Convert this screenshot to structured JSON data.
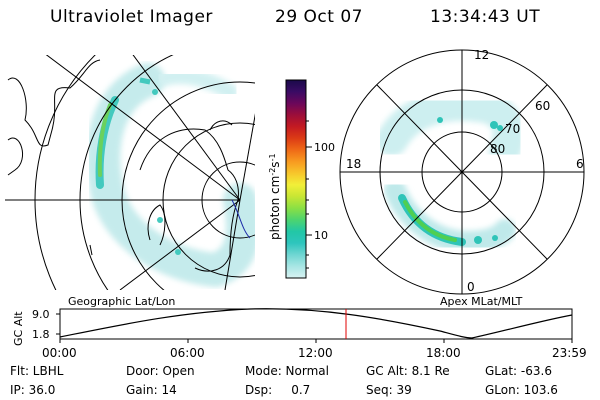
{
  "header": {
    "instrument": "Ultraviolet Imager",
    "date": "29 Oct 07",
    "time": "13:34:43 UT"
  },
  "colorbar": {
    "title": "photon cm",
    "title_sup1": "-2",
    "title_mid": "s",
    "title_sup2": "-1",
    "ticks": [
      "100",
      "10"
    ],
    "stops": [
      "#d8f2f2",
      "#a8e6e4",
      "#6fd6d2",
      "#2ec5bd",
      "#22c7a6",
      "#4dd46f",
      "#8be044",
      "#c8e634",
      "#f2ef38",
      "#f7c62b",
      "#f89a20",
      "#ef6a17",
      "#dc3b15",
      "#c31a22",
      "#9c0e3a",
      "#6b075a",
      "#3a0b64",
      "#1a0a4a"
    ]
  },
  "left_map": {
    "label": "Geographic Lat/Lon"
  },
  "right_map": {
    "label": "Apex MLat/MLT",
    "lat_labels": [
      "60",
      "70",
      "80"
    ],
    "mlt_labels": {
      "top": "12",
      "left": "18",
      "right": "6",
      "bottom": "0"
    }
  },
  "altitude_plot": {
    "ylabel": "GC Alt",
    "yticks": [
      "9.0",
      "1.8"
    ],
    "xticks": [
      "00:00",
      "06:00",
      "12:00",
      "18:00",
      "23:59"
    ],
    "marker_color": "#e00000"
  },
  "info": {
    "row1": {
      "filter": "Flt: LBHL",
      "door": "Door: Open",
      "mode": "Mode: Normal",
      "gc_alt": "GC Alt: 8.1 Re",
      "glat": "GLat: -63.6"
    },
    "row2": {
      "ip": "IP: 36.0",
      "gain": "Gain: 14",
      "dsp": "Dsp:     0.7",
      "seq": "Seq: 39",
      "glon": "GLon: 103.6"
    }
  }
}
